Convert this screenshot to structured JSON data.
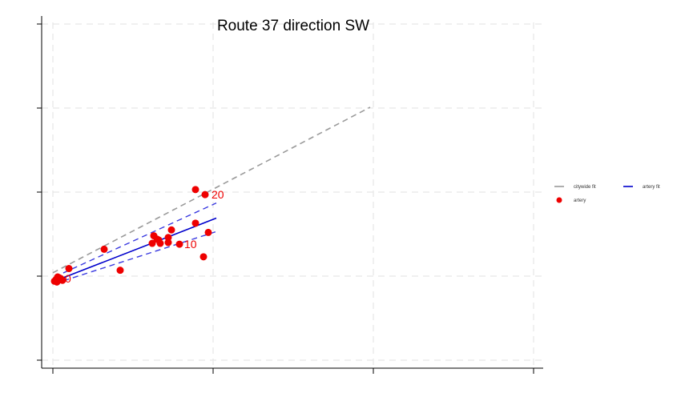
{
  "chart_data": {
    "type": "scatter",
    "title": "Route 37 direction SW",
    "xlim": [
      0,
      30
    ],
    "ylim": [
      -10,
      30
    ],
    "x_ticks": [
      0,
      10,
      20,
      30
    ],
    "y_ticks": [
      -10,
      0,
      10,
      20,
      30
    ],
    "grid": true,
    "legend_position": "right",
    "colors": {
      "citywide": "#9a9a9a",
      "artery_fit": "#0000cc",
      "artery_ci": "#3a3ae0",
      "points": "#ee0000",
      "labels": "#ee0000",
      "axis": "#000000",
      "grid": "#e6e6e6"
    },
    "legend": [
      {
        "key": "citywide",
        "label": "citywide fit",
        "symbol": "line"
      },
      {
        "key": "artery_fit",
        "label": "artery fit",
        "symbol": "line"
      },
      {
        "key": "points",
        "label": "artery",
        "symbol": "dot"
      }
    ],
    "citywide_fit": {
      "x": [
        0,
        19.8
      ],
      "y": [
        0.4,
        20.1
      ]
    },
    "artery_fit": {
      "x": [
        0.1,
        10.2
      ],
      "y": [
        -0.6,
        6.9
      ]
    },
    "artery_ci_upper": {
      "x": [
        0.1,
        10.2
      ],
      "y": [
        -0.1,
        8.7
      ]
    },
    "artery_ci_lower": {
      "x": [
        0.1,
        10.2
      ],
      "y": [
        -0.9,
        5.3
      ]
    },
    "points": {
      "x": [
        0.1,
        0.2,
        0.25,
        0.3,
        0.35,
        0.4,
        0.45,
        0.5,
        0.6,
        0.3,
        1.0,
        3.2,
        4.2,
        6.3,
        6.2,
        6.5,
        6.6,
        6.7,
        7.2,
        7.2,
        7.4,
        7.9,
        8.9,
        8.9,
        9.4,
        9.5,
        9.7
      ],
      "y": [
        -0.6,
        -0.4,
        -0.7,
        -0.3,
        -0.5,
        -0.2,
        -0.4,
        -0.3,
        -0.5,
        -0.1,
        0.9,
        3.2,
        0.7,
        4.8,
        3.9,
        4.4,
        4.3,
        3.9,
        4.6,
        4.0,
        5.5,
        3.8,
        10.3,
        6.3,
        2.3,
        9.7,
        5.2
      ]
    },
    "point_labels": [
      {
        "text": "20",
        "x": 9.9,
        "y": 9.7
      },
      {
        "text": "10",
        "x": 8.2,
        "y": 3.8
      },
      {
        "text": "0",
        "x": 0.75,
        "y": -0.3
      }
    ]
  }
}
